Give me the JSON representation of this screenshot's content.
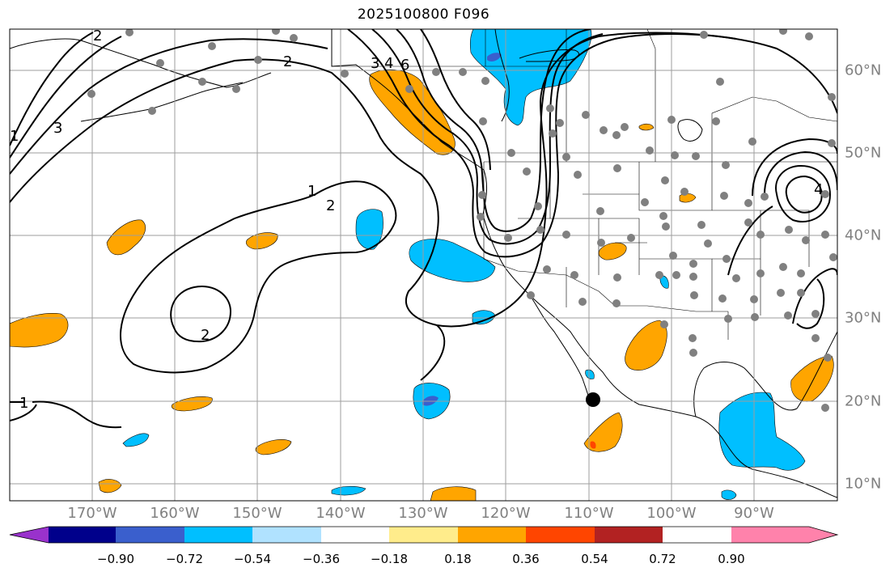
{
  "title": "2025100800 F096",
  "lon_labels": [
    "170°W",
    "160°W",
    "150°W",
    "140°W",
    "130°W",
    "120°W",
    "110°W",
    "100°W",
    "90°W"
  ],
  "lat_labels": [
    "60°N",
    "50°N",
    "40°N",
    "30°N",
    "20°N",
    "10°N"
  ],
  "contour_labels": [
    "1",
    "2",
    "2",
    "2",
    "3",
    "4",
    "6",
    "1",
    "2",
    "3",
    "4",
    "1"
  ],
  "colorbar": {
    "tick_labels": [
      "−0.90",
      "−0.72",
      "−0.54",
      "−0.36",
      "−0.18",
      "0.18",
      "0.36",
      "0.54",
      "0.72",
      "0.90"
    ],
    "colors": [
      "#9932cc",
      "#00008b",
      "#3a5fcd",
      "#00bfff",
      "#b0e2ff",
      "#ffffff",
      "#ffec8b",
      "#ffa500",
      "#ff4500",
      "#b22222",
      "#ff82ab"
    ]
  },
  "map": {
    "lon_range": [
      -180,
      -80
    ],
    "lat_range": [
      8,
      65
    ],
    "projection": "PlateCarree",
    "grid": true,
    "shading_colors": {
      "positive": "#ffa500",
      "negative": "#00bfff",
      "strong_negative": "#3a5fcd",
      "strong_positive": "#ff4500"
    },
    "station_color": "#808080",
    "marker_color": "#000000"
  }
}
